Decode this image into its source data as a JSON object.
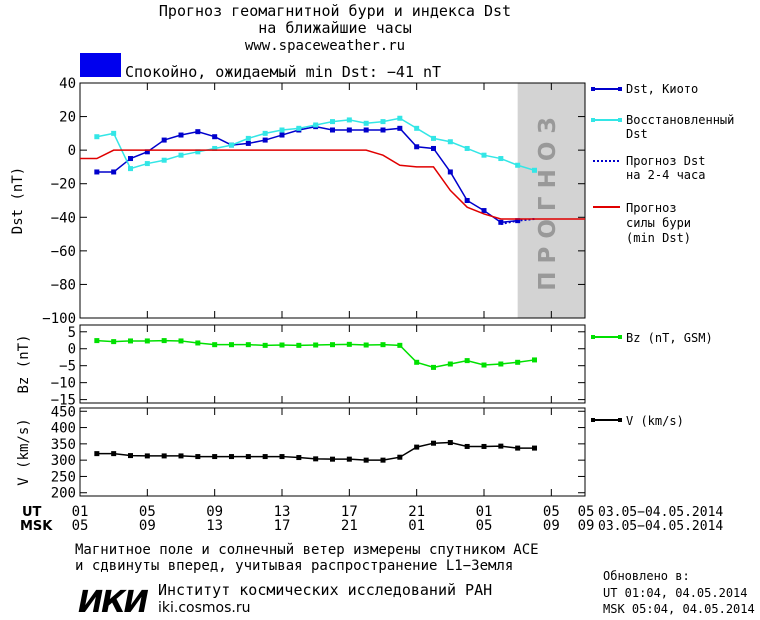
{
  "header": {
    "title_line1": "Прогноз геомагнитной бури и индекса Dst",
    "title_line2": "на ближайшие часы",
    "url": "www.spaceweather.ru",
    "status_color": "#0000ee",
    "status_text": "Спокойно, ожидаемый min Dst: −41 nT"
  },
  "forecast_label": "ПРОГНОЗ",
  "chart_data": [
    {
      "type": "line",
      "ylabel": "Dst (nT)",
      "ylim": [
        -100,
        40
      ],
      "yticks": [
        40,
        20,
        0,
        -20,
        -40,
        -60,
        -80,
        -100
      ],
      "ytick_labels": [
        "40",
        "20",
        "0",
        "−20",
        "−40",
        "−60",
        "−80",
        "−100"
      ],
      "series": [
        {
          "name": "Dst, Киото",
          "color": "#0000cc",
          "x": [
            1,
            2,
            3,
            4,
            5,
            6,
            7,
            8,
            9,
            10,
            11,
            12,
            13,
            14,
            15,
            16,
            17,
            18,
            19,
            20,
            21,
            22,
            23,
            24,
            25,
            26
          ],
          "values": [
            -13,
            -13,
            -5,
            -1,
            6,
            9,
            11,
            8,
            3,
            4,
            6,
            9,
            12,
            14,
            12,
            12,
            12,
            12,
            13,
            2,
            1,
            -13,
            -30,
            -36,
            -43,
            -42
          ]
        },
        {
          "name": "Восстановленный Dst",
          "color": "#33e6e6",
          "x": [
            1,
            2,
            3,
            4,
            5,
            6,
            7,
            8,
            9,
            10,
            11,
            12,
            13,
            14,
            15,
            16,
            17,
            18,
            19,
            20,
            21,
            22,
            23,
            24,
            25,
            26,
            27
          ],
          "values": [
            8,
            10,
            -11,
            -8,
            -6,
            -3,
            -1,
            1,
            3,
            7,
            10,
            12,
            13,
            15,
            17,
            18,
            16,
            17,
            19,
            13,
            7,
            5,
            1,
            -3,
            -5,
            -9,
            -12
          ]
        },
        {
          "name": "Прогноз Dst на 2-4 часа",
          "color": "#0000cc",
          "x": [
            25,
            26,
            27
          ],
          "values": [
            -44,
            -42,
            -41
          ]
        },
        {
          "name": "Прогноз силы бури (min Dst)",
          "color": "#e00000",
          "x": [
            0,
            1,
            2,
            3,
            4,
            5,
            6,
            7,
            8,
            9,
            10,
            11,
            12,
            13,
            14,
            15,
            16,
            17,
            18,
            19,
            20,
            21,
            22,
            23,
            24,
            25,
            26,
            27,
            28,
            29,
            30
          ],
          "values": [
            -5,
            -5,
            0,
            0,
            0,
            0,
            0,
            0,
            0,
            0,
            0,
            0,
            0,
            0,
            0,
            0,
            0,
            0,
            -3,
            -9,
            -10,
            -10,
            -24,
            -34,
            -38,
            -41,
            -41,
            -41,
            -41,
            -41,
            -41
          ]
        }
      ]
    },
    {
      "type": "line",
      "ylabel": "Bz (nT)",
      "ylim": [
        -16,
        7
      ],
      "yticks": [
        5,
        0,
        -5,
        -10,
        -15
      ],
      "ytick_labels": [
        "5",
        "0",
        "−5",
        "−10",
        "−15"
      ],
      "series": [
        {
          "name": "Bz (nT, GSM)",
          "color": "#00e000",
          "x": [
            1,
            2,
            3,
            4,
            5,
            6,
            7,
            8,
            9,
            10,
            11,
            12,
            13,
            14,
            15,
            16,
            17,
            18,
            19,
            20,
            21,
            22,
            23,
            24,
            25,
            26,
            27
          ],
          "values": [
            2.4,
            2.1,
            2.3,
            2.3,
            2.4,
            2.3,
            1.7,
            1.2,
            1.2,
            1.2,
            1.0,
            1.1,
            1.0,
            1.1,
            1.2,
            1.3,
            1.1,
            1.2,
            1.0,
            -4.0,
            -5.5,
            -4.5,
            -3.5,
            -4.8,
            -4.5,
            -4.0,
            -3.3
          ]
        }
      ]
    },
    {
      "type": "line",
      "ylabel": "V (km/s)",
      "ylim": [
        190,
        460
      ],
      "yticks": [
        450,
        400,
        350,
        300,
        250,
        200
      ],
      "ytick_labels": [
        "450",
        "400",
        "350",
        "300",
        "250",
        "200"
      ],
      "series": [
        {
          "name": "V (km/s)",
          "color": "#000000",
          "x": [
            1,
            2,
            3,
            4,
            5,
            6,
            7,
            8,
            9,
            10,
            11,
            12,
            13,
            14,
            15,
            16,
            17,
            18,
            19,
            20,
            21,
            22,
            23,
            24,
            25,
            26,
            27
          ],
          "values": [
            320,
            320,
            314,
            313,
            313,
            313,
            311,
            311,
            311,
            311,
            311,
            311,
            308,
            304,
            303,
            303,
            300,
            300,
            309,
            340,
            352,
            354,
            342,
            342,
            343,
            337,
            337
          ]
        }
      ]
    }
  ],
  "x_axis": {
    "xlim": [
      0,
      30
    ],
    "tick_hours": [
      0,
      4,
      8,
      12,
      16,
      20,
      24,
      28
    ],
    "ut_label": "UT",
    "msk_label": "MSK",
    "ut_ticks": [
      "01",
      "05",
      "09",
      "13",
      "17",
      "21",
      "01",
      "05"
    ],
    "ut_end_tick": "05",
    "msk_ticks": [
      "05",
      "09",
      "13",
      "17",
      "21",
      "01",
      "05",
      "09"
    ],
    "msk_end_tick": "09",
    "ut_date_range": "03.05−04.05.2014",
    "msk_date_range": "03.05−04.05.2014"
  },
  "legend": {
    "dst_kyoto": "Dst, Киото",
    "recovered_1": "Восстановленный",
    "recovered_2": "Dst",
    "forecast_1": "Прогноз Dst",
    "forecast_2": "на 2-4 часа",
    "storm_1": "Прогноз",
    "storm_2": "силы бури",
    "storm_3": "(min Dst)",
    "bz": "Bz (nT, GSM)",
    "v": "V (km/s)"
  },
  "footer": {
    "note_line1": "Магнитное поле и солнечный ветер измерены спутником ACE",
    "note_line2": "и сдвинуты вперед, учитывая распространение L1−Земля",
    "logo_text": "ИКИ",
    "institute": "Институт космических исследований РАН",
    "institute_url": "iki.cosmos.ru",
    "updated_label": "Обновлено в:",
    "updated_ut": "UT  01:04, 04.05.2014",
    "updated_msk": "MSK 05:04, 04.05.2014"
  }
}
